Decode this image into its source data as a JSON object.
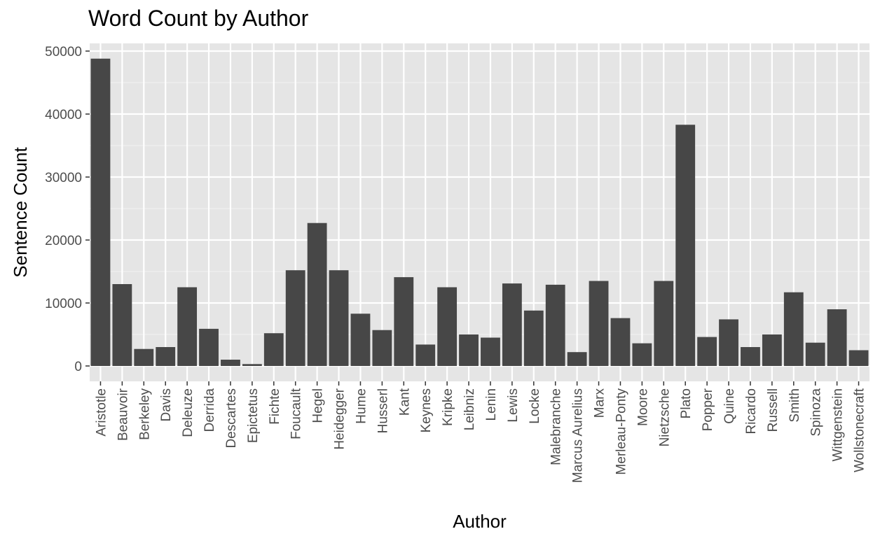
{
  "chart_data": {
    "type": "bar",
    "title": "Word Count by Author",
    "xlabel": "Author",
    "ylabel": "Sentence Count",
    "ylim": [
      -2500,
      52500
    ],
    "yticks": [
      0,
      10000,
      20000,
      30000,
      40000,
      50000
    ],
    "ytick_labels": [
      "0",
      "10000",
      "20000",
      "30000",
      "40000",
      "50000"
    ],
    "grid": true,
    "panel_background": "#e5e5e5",
    "bar_color": "#474747",
    "categories": [
      "Aristotle",
      "Beauvoir",
      "Berkeley",
      "Davis",
      "Deleuze",
      "Derrida",
      "Descartes",
      "Epictetus",
      "Fichte",
      "Foucault",
      "Hegel",
      "Heidegger",
      "Hume",
      "Husserl",
      "Kant",
      "Keynes",
      "Kripke",
      "Leibniz",
      "Lenin",
      "Lewis",
      "Locke",
      "Malebranche",
      "Marcus Aurelius",
      "Marx",
      "Merleau-Ponty",
      "Moore",
      "Nietzsche",
      "Plato",
      "Popper",
      "Quine",
      "Ricardo",
      "Russell",
      "Smith",
      "Spinoza",
      "Wittgenstein",
      "Wollstonecraft"
    ],
    "values": [
      48800,
      13000,
      2700,
      3000,
      12500,
      5900,
      1000,
      300,
      5200,
      15200,
      22700,
      15200,
      8300,
      5700,
      14100,
      3400,
      12500,
      5000,
      4500,
      13100,
      8800,
      12900,
      2200,
      13500,
      7600,
      3600,
      13500,
      38300,
      4600,
      7400,
      3000,
      5000,
      11700,
      3700,
      9000,
      2500
    ]
  }
}
